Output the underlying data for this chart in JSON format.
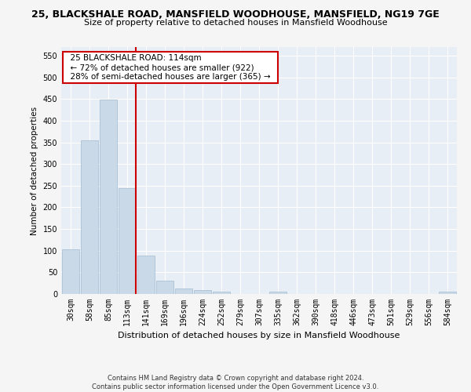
{
  "title1": "25, BLACKSHALE ROAD, MANSFIELD WOODHOUSE, MANSFIELD, NG19 7GE",
  "title2": "Size of property relative to detached houses in Mansfield Woodhouse",
  "xlabel": "Distribution of detached houses by size in Mansfield Woodhouse",
  "ylabel": "Number of detached properties",
  "footnote": "Contains HM Land Registry data © Crown copyright and database right 2024.\nContains public sector information licensed under the Open Government Licence v3.0.",
  "annotation_line1": "25 BLACKSHALE ROAD: 114sqm",
  "annotation_line2": "← 72% of detached houses are smaller (922)",
  "annotation_line3": "28% of semi-detached houses are larger (365) →",
  "bar_color": "#c9d9e8",
  "bar_edge_color": "#a0bcd0",
  "vline_color": "#cc0000",
  "background_color": "#e8eef5",
  "grid_color": "#ffffff",
  "categories": [
    "30sqm",
    "58sqm",
    "85sqm",
    "113sqm",
    "141sqm",
    "169sqm",
    "196sqm",
    "224sqm",
    "252sqm",
    "279sqm",
    "307sqm",
    "335sqm",
    "362sqm",
    "390sqm",
    "418sqm",
    "446sqm",
    "473sqm",
    "501sqm",
    "529sqm",
    "556sqm",
    "584sqm"
  ],
  "values": [
    103,
    355,
    448,
    245,
    88,
    30,
    13,
    9,
    6,
    0,
    0,
    5,
    0,
    0,
    0,
    0,
    0,
    0,
    0,
    0,
    5
  ],
  "ylim": [
    0,
    570
  ],
  "yticks": [
    0,
    50,
    100,
    150,
    200,
    250,
    300,
    350,
    400,
    450,
    500,
    550
  ],
  "vline_bin_index": 3
}
